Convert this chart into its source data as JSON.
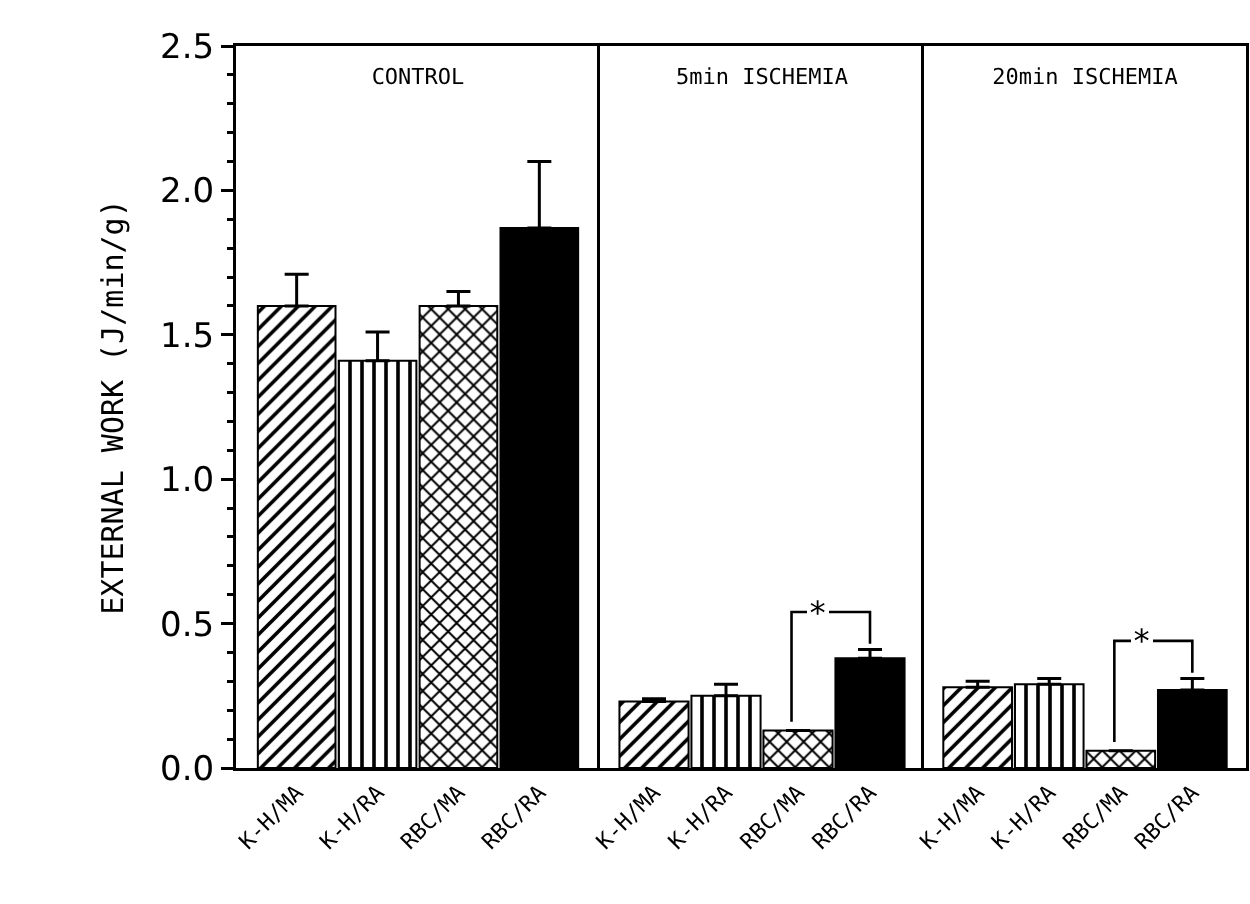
{
  "chart_data": [
    {
      "type": "bar",
      "title": "CONTROL",
      "ylabel": "EXTERNAL WORK (J/min/g)",
      "categories": [
        "K-H/MA",
        "K-H/RA",
        "RBC/MA",
        "RBC/RA"
      ],
      "values": [
        1.6,
        1.41,
        1.6,
        1.87
      ],
      "errors": [
        [
          1.6,
          1.71
        ],
        [
          1.41,
          1.51
        ],
        [
          1.6,
          1.65
        ],
        [
          1.87,
          2.1
        ]
      ],
      "colors": [
        "#000000",
        "#000000",
        "#000000",
        "#000000"
      ],
      "ylim": [
        0,
        2.5
      ],
      "yticks": [
        {
          "value": 0,
          "label": "0.0"
        },
        {
          "value": 0.5,
          "label": "0.5"
        },
        {
          "value": 1,
          "label": "1.0"
        },
        {
          "value": 1.5,
          "label": "1.5"
        },
        {
          "value": 2,
          "label": "2.0"
        },
        {
          "value": 2.5,
          "label": "2.5"
        }
      ]
    },
    {
      "type": "bar",
      "title": "5min ISCHEMIA",
      "categories": [
        "K-H/MA",
        "K-H/RA",
        "RBC/MA",
        "RBC/RA"
      ],
      "values": [
        0.23,
        0.25,
        0.13,
        0.38
      ],
      "errors": [
        [
          0.23,
          0.24
        ],
        [
          0.25,
          0.29
        ],
        [
          0.13,
          0.13
        ],
        [
          0.38,
          0.41
        ]
      ],
      "colors": [
        "#000000",
        "#000000",
        "#000000",
        "#000000"
      ],
      "ylim": [
        0,
        2.5
      ],
      "tick_labels": "x",
      "annotations": [
        "*"
      ]
    },
    {
      "type": "bar",
      "title": "20min ISCHEMIA",
      "categories": [
        "K-H/MA",
        "K-H/RA",
        "RBC/MA",
        "RBC/RA"
      ],
      "values": [
        0.28,
        0.29,
        0.06,
        0.27
      ],
      "errors": [
        [
          0.28,
          0.3
        ],
        [
          0.29,
          0.31
        ],
        [
          0.06,
          0.06
        ],
        [
          0.27,
          0.31
        ]
      ],
      "colors": [
        "#000000",
        "#000000",
        "#000000",
        "#000000"
      ],
      "ylim": [
        0,
        2.5
      ],
      "tick_labels": "x",
      "annotations": [
        "*"
      ]
    }
  ]
}
